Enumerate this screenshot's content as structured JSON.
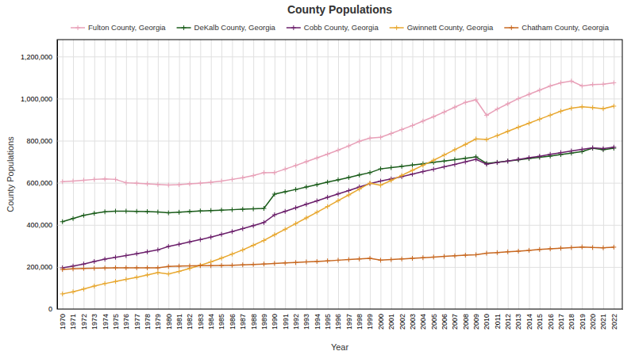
{
  "chart_data": {
    "type": "line",
    "title": "County Populations",
    "xlabel": "Year",
    "ylabel": "County Populations",
    "x": [
      1970,
      1971,
      1972,
      1973,
      1974,
      1975,
      1976,
      1977,
      1978,
      1979,
      1980,
      1981,
      1982,
      1983,
      1984,
      1985,
      1986,
      1987,
      1988,
      1989,
      1990,
      1991,
      1992,
      1993,
      1994,
      1995,
      1996,
      1997,
      1998,
      1999,
      2000,
      2001,
      2002,
      2003,
      2004,
      2005,
      2006,
      2007,
      2008,
      2009,
      2010,
      2011,
      2012,
      2013,
      2014,
      2015,
      2016,
      2017,
      2018,
      2019,
      2020,
      2021,
      2022
    ],
    "series": [
      {
        "name": "Fulton County, Georgia",
        "color": "#e8a0b8",
        "values": [
          605000,
          608000,
          612000,
          616000,
          618000,
          616000,
          600000,
          598000,
          595000,
          592000,
          589000,
          591000,
          595000,
          598000,
          602000,
          608000,
          616000,
          624000,
          634000,
          648000,
          648006,
          665000,
          682000,
          700000,
          718000,
          736000,
          755000,
          775000,
          797000,
          812000,
          816006,
          834000,
          853000,
          872000,
          893000,
          914000,
          936000,
          959000,
          982000,
          994000,
          920581,
          950000,
          975000,
          1000000,
          1020000,
          1040000,
          1060000,
          1075000,
          1083000,
          1060000,
          1066710,
          1068000,
          1075000
        ]
      },
      {
        "name": "DeKalb County, Georgia",
        "color": "#1a5c1a",
        "values": [
          415000,
          430000,
          445000,
          455000,
          462000,
          465000,
          465000,
          464000,
          463000,
          461000,
          457000,
          460000,
          463000,
          466000,
          468000,
          470000,
          472000,
          474000,
          476000,
          478000,
          545837,
          557000,
          568000,
          580000,
          591000,
          603000,
          614000,
          625000,
          637000,
          648000,
          665865,
          672000,
          678000,
          684000,
          690000,
          697000,
          703000,
          710000,
          716000,
          723000,
          691893,
          697000,
          703000,
          709000,
          715000,
          721000,
          727000,
          734000,
          741000,
          748000,
          764065,
          757000,
          764000
        ]
      },
      {
        "name": "Cobb County, Georgia",
        "color": "#6b1f6b",
        "values": [
          196000,
          204000,
          214000,
          226000,
          237000,
          246000,
          254000,
          263000,
          272000,
          281000,
          297718,
          308000,
          319000,
          330000,
          342000,
          355000,
          368000,
          382000,
          396000,
          411000,
          447745,
          464000,
          481000,
          498000,
          514000,
          531000,
          547000,
          563000,
          580000,
          596000,
          607751,
          618000,
          629000,
          641000,
          653000,
          664000,
          676000,
          687000,
          699000,
          711000,
          688078,
          696000,
          703000,
          711000,
          719000,
          726000,
          735000,
          743000,
          751000,
          759000,
          766024,
          762000,
          769000
        ]
      },
      {
        "name": "Gwinnett County, Georgia",
        "color": "#e8a830",
        "values": [
          72000,
          82000,
          95000,
          109000,
          121000,
          131000,
          141000,
          151000,
          162000,
          173000,
          166808,
          179000,
          193000,
          208000,
          224000,
          242000,
          261000,
          281000,
          303000,
          326000,
          352910,
          379000,
          406000,
          433000,
          460000,
          487000,
          515000,
          542000,
          570000,
          598000,
          588448,
          611000,
          635000,
          659000,
          683000,
          707000,
          732000,
          757000,
          782000,
          808000,
          805321,
          824000,
          844000,
          864000,
          883000,
          902000,
          921000,
          940000,
          954000,
          961000,
          957062,
          952000,
          964000
        ]
      },
      {
        "name": "Chatham County, Georgia",
        "color": "#c86820",
        "values": [
          188000,
          191000,
          193000,
          194000,
          195000,
          196000,
          196000,
          196000,
          196000,
          196000,
          202226,
          204000,
          205000,
          206000,
          206000,
          207000,
          208000,
          210000,
          212000,
          214000,
          216935,
          219000,
          221000,
          224000,
          226000,
          229000,
          232000,
          235000,
          238000,
          241000,
          232048,
          235000,
          238000,
          241000,
          244000,
          247000,
          250000,
          253000,
          256000,
          258000,
          265128,
          268000,
          272000,
          275000,
          279000,
          283000,
          286000,
          289000,
          292000,
          295000,
          292256,
          291000,
          294000
        ]
      }
    ],
    "xlim": [
      1969.5,
      2022.8
    ],
    "xticks": [
      1970,
      1971,
      1972,
      1973,
      1974,
      1975,
      1976,
      1977,
      1978,
      1979,
      1980,
      1981,
      1982,
      1983,
      1984,
      1985,
      1986,
      1987,
      1988,
      1989,
      1990,
      1991,
      1992,
      1993,
      1994,
      1995,
      1996,
      1997,
      1998,
      1999,
      2000,
      2001,
      2002,
      2003,
      2004,
      2005,
      2006,
      2007,
      2008,
      2009,
      2010,
      2011,
      2012,
      2013,
      2014,
      2015,
      2016,
      2017,
      2018,
      2019,
      2020,
      2021,
      2022
    ],
    "ylim": [
      0,
      1280000
    ],
    "yticks": [
      0,
      {
        "value": 200000,
        "label": "200,000"
      },
      {
        "value": 400000,
        "label": "400,000"
      },
      {
        "value": 600000,
        "label": "600,000"
      },
      {
        "value": 800000,
        "label": "800,000"
      },
      {
        "value": 1000000,
        "label": "1,000,000"
      },
      {
        "value": 1200000,
        "label": "1,200,000"
      }
    ],
    "grid": true,
    "legend": "top",
    "marker": "plus"
  }
}
